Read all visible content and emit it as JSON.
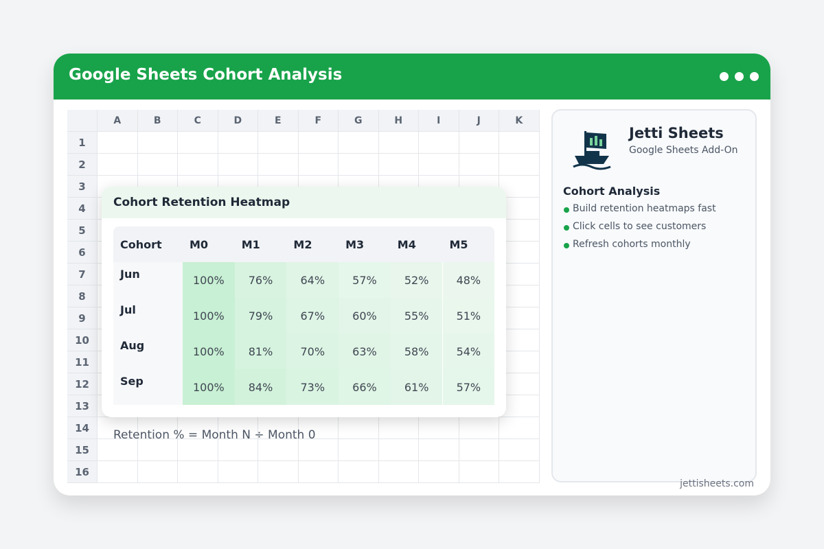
{
  "window": {
    "title": "Google Sheets Cohort Analysis"
  },
  "sheet": {
    "columns": [
      "A",
      "B",
      "C",
      "D",
      "E",
      "F",
      "G",
      "H",
      "I",
      "J",
      "K"
    ],
    "rows": [
      1,
      2,
      3,
      4,
      5,
      6,
      7,
      8,
      9,
      10,
      11,
      12,
      13,
      14,
      15,
      16
    ]
  },
  "heatmap": {
    "title": "Cohort Retention Heatmap",
    "header": [
      "Cohort",
      "M0",
      "M1",
      "M2",
      "M3",
      "M4",
      "M5"
    ],
    "rows": [
      {
        "cohort": "Jun",
        "cells": [
          "100%",
          "76%",
          "64%",
          "57%",
          "52%",
          "48%"
        ]
      },
      {
        "cohort": "Jul",
        "cells": [
          "100%",
          "79%",
          "67%",
          "60%",
          "55%",
          "51%"
        ]
      },
      {
        "cohort": "Aug",
        "cells": [
          "100%",
          "81%",
          "70%",
          "63%",
          "58%",
          "54%"
        ]
      },
      {
        "cohort": "Sep",
        "cells": [
          "100%",
          "84%",
          "73%",
          "66%",
          "61%",
          "57%"
        ]
      }
    ],
    "footnote": "Retention % = Month N ÷ Month 0"
  },
  "sidebar": {
    "brand": "Jetti Sheets",
    "tagline": "Google Sheets Add-On",
    "section_title": "Cohort Analysis",
    "bullets": [
      "Build retention heatmaps fast",
      "Click cells to see customers",
      "Refresh cohorts monthly"
    ],
    "footer": "jettisheets.com"
  }
}
